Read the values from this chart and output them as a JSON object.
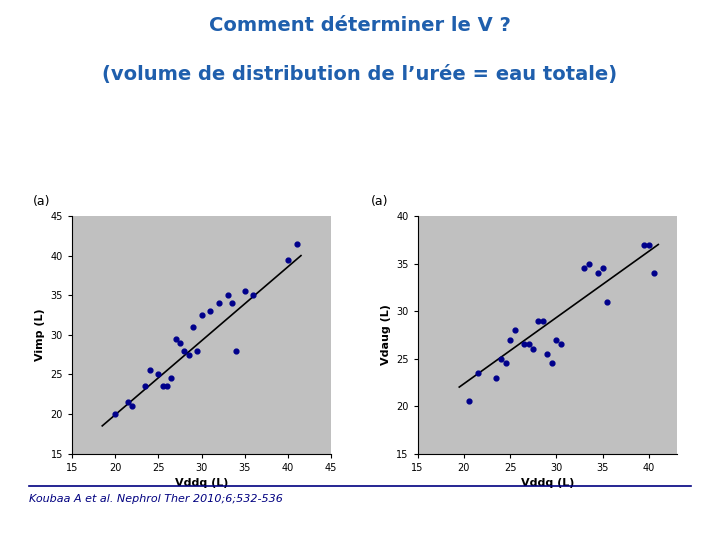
{
  "title_line1": "Comment déterminer le V ?",
  "title_line2": "(volume de distribution de l’urée = eau totale)",
  "title_color": "#1F5FAD",
  "title_fontsize": 14,
  "plot1": {
    "label": "(a)",
    "xlabel": "Vddq (L)",
    "ylabel": "Vimp (L)",
    "xlim": [
      15,
      45
    ],
    "ylim": [
      15,
      45
    ],
    "xticks": [
      15,
      20,
      25,
      30,
      35,
      40,
      45
    ],
    "yticks": [
      15,
      20,
      25,
      30,
      35,
      40,
      45
    ],
    "scatter_x": [
      20.0,
      21.5,
      22.0,
      23.5,
      24.0,
      25.0,
      25.5,
      26.0,
      26.5,
      27.0,
      27.5,
      28.0,
      28.5,
      29.0,
      29.5,
      30.0,
      31.0,
      32.0,
      33.0,
      33.5,
      34.0,
      35.0,
      36.0,
      40.0,
      41.0
    ],
    "scatter_y": [
      20.0,
      21.5,
      21.0,
      23.5,
      25.5,
      25.0,
      23.5,
      23.5,
      24.5,
      29.5,
      29.0,
      28.0,
      27.5,
      31.0,
      28.0,
      32.5,
      33.0,
      34.0,
      35.0,
      34.0,
      28.0,
      35.5,
      35.0,
      39.5,
      41.5
    ],
    "line_x": [
      18.5,
      41.5
    ],
    "line_y": [
      18.5,
      40.0
    ],
    "scatter_color": "#00008B",
    "line_color": "#000000",
    "bg_color": "#C0C0C0"
  },
  "plot2": {
    "label": "(a)",
    "xlabel": "Vddq (L)",
    "ylabel": "Vdaug (L)",
    "xlim": [
      15,
      43
    ],
    "ylim": [
      15,
      40
    ],
    "xticks": [
      15,
      20,
      25,
      30,
      35,
      40
    ],
    "yticks": [
      15,
      20,
      25,
      30,
      35,
      40
    ],
    "scatter_x": [
      20.5,
      21.5,
      23.5,
      24.0,
      24.5,
      25.0,
      25.5,
      26.5,
      27.0,
      27.5,
      28.0,
      28.5,
      29.0,
      29.5,
      30.0,
      30.5,
      33.0,
      33.5,
      34.5,
      35.0,
      35.5,
      39.5,
      40.0,
      40.5
    ],
    "scatter_y": [
      20.5,
      23.5,
      23.0,
      25.0,
      24.5,
      27.0,
      28.0,
      26.5,
      26.5,
      26.0,
      29.0,
      29.0,
      25.5,
      24.5,
      27.0,
      26.5,
      34.5,
      35.0,
      34.0,
      34.5,
      31.0,
      37.0,
      37.0,
      34.0
    ],
    "line_x": [
      19.5,
      41.0
    ],
    "line_y": [
      22.0,
      37.0
    ],
    "scatter_color": "#00008B",
    "line_color": "#000000",
    "bg_color": "#C0C0C0"
  },
  "footnote": "Koubaa A et al. Nephrol Ther 2010;6;532-536",
  "footnote_color": "#000080",
  "footnote_fontsize": 8,
  "bg_color": "#FFFFFF"
}
